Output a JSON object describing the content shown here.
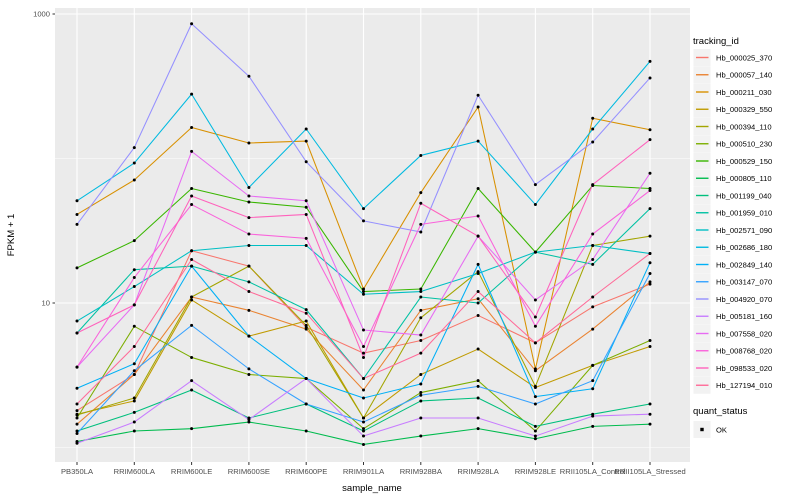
{
  "figure": {
    "kind": "ggplot-line-chart",
    "background": "#FFFFFF",
    "panel_bg": "#EBEBEB",
    "grid_color": "#FFFFFF",
    "tick_label_color": "#4D4D4D",
    "point_color": "#000000"
  },
  "legend": {
    "tracking_title": "tracking_id",
    "quant_title": "quant_status",
    "quant_items": [
      {
        "label": "OK",
        "marker": "black-point"
      }
    ],
    "key_bg": "#F2F2F2"
  },
  "chart_data": {
    "type": "line",
    "title": "",
    "xlabel": "sample_name",
    "ylabel": "FPKM + 1",
    "y_scale": "log10",
    "ylim": [
      0.8,
      1100
    ],
    "y_tick_values": [
      10,
      1000
    ],
    "y_tick_labels": [
      "10",
      "1000"
    ],
    "y_minor_gridlines": [
      1,
      100
    ],
    "grid": true,
    "legend_position": "right",
    "categories": [
      "PB350LA",
      "RRIM600LA",
      "RRIM600LE",
      "RRIM600SE",
      "RRIM600PE",
      "RRIM901LA",
      "RRIM928BA",
      "RRIM928LA",
      "RRIM928LE",
      "RRII105LA_Control",
      "RRII105LA_Stressed"
    ],
    "series": [
      {
        "name": "Hb_000025_370",
        "color": "#F8766D",
        "values": [
          1.8,
          3.2,
          23,
          18,
          6.8,
          4.5,
          5.5,
          8.2,
          5.3,
          9.4,
          13.5
        ]
      },
      {
        "name": "Hb_000057_140",
        "color": "#EA8331",
        "values": [
          1.45,
          3.2,
          11,
          8.9,
          6.6,
          2.5,
          8.9,
          10.7,
          3.4,
          6.6,
          14
        ]
      },
      {
        "name": "Hb_000211_030",
        "color": "#D89000",
        "values": [
          41,
          71,
          164,
          128,
          132,
          12.5,
          58,
          227,
          3.5,
          190,
          158
        ]
      },
      {
        "name": "Hb_000329_550",
        "color": "#C09B00",
        "values": [
          1.7,
          2.1,
          10.5,
          5.9,
          7.5,
          1.6,
          3.2,
          4.8,
          2.6,
          3.7,
          5.0
        ]
      },
      {
        "name": "Hb_000394_110",
        "color": "#A3A500",
        "values": [
          1.68,
          2.2,
          11,
          18,
          7.0,
          1.6,
          7.9,
          16.5,
          2.65,
          25,
          29
        ]
      },
      {
        "name": "Hb_000510_230",
        "color": "#7CAE00",
        "values": [
          1.6,
          6.9,
          4.2,
          3.2,
          3.0,
          1.35,
          2.4,
          2.9,
          1.3,
          3.7,
          5.5
        ]
      },
      {
        "name": "Hb_000529_150",
        "color": "#39B600",
        "values": [
          17.5,
          27,
          62,
          50,
          46,
          12,
          12.5,
          62,
          22.5,
          65,
          62
        ]
      },
      {
        "name": "Hb_000805_110",
        "color": "#00BB4E",
        "values": [
          1.1,
          1.3,
          1.35,
          1.5,
          1.3,
          1.05,
          1.2,
          1.35,
          1.15,
          1.4,
          1.45
        ]
      },
      {
        "name": "Hb_001199_040",
        "color": "#00BF7D",
        "values": [
          1.3,
          1.75,
          2.5,
          1.6,
          2.0,
          1.3,
          2.1,
          2.2,
          1.4,
          1.7,
          2.0
        ]
      },
      {
        "name": "Hb_001959_010",
        "color": "#00C1A3",
        "values": [
          6.2,
          17,
          18,
          14,
          9.0,
          3.0,
          11,
          10,
          22.5,
          18.5,
          45
        ]
      },
      {
        "name": "Hb_002571_090",
        "color": "#00BFC4",
        "values": [
          7.5,
          13,
          23,
          25,
          25,
          11.5,
          12,
          16,
          22.5,
          25,
          22
        ]
      },
      {
        "name": "Hb_002686_180",
        "color": "#00BAE0",
        "values": [
          51,
          93,
          279,
          63,
          160,
          45,
          105,
          132,
          48,
          160,
          470
        ]
      },
      {
        "name": "Hb_002849_140",
        "color": "#00B0F6",
        "values": [
          2.57,
          3.8,
          18,
          5.9,
          3.0,
          2.2,
          2.75,
          18.5,
          2.25,
          2.55,
          19
        ]
      },
      {
        "name": "Hb_003147_070",
        "color": "#35A2FF",
        "values": [
          1.25,
          3.4,
          7.0,
          3.5,
          2.0,
          1.5,
          2.3,
          2.65,
          2.0,
          2.9,
          16
        ]
      },
      {
        "name": "Hb_004920_070",
        "color": "#9590FF",
        "values": [
          35,
          119,
          856,
          371,
          95,
          37,
          31,
          274,
          66,
          130,
          361
        ]
      },
      {
        "name": "Hb_005181_160",
        "color": "#C77CFF",
        "values": [
          1.07,
          1.5,
          2.9,
          1.56,
          3.0,
          1.2,
          1.6,
          1.6,
          1.2,
          1.65,
          1.7
        ]
      },
      {
        "name": "Hb_007558_020",
        "color": "#E76BF3",
        "values": [
          3.6,
          9.7,
          112,
          55,
          51,
          6.5,
          6.0,
          29,
          10.5,
          20,
          79
        ]
      },
      {
        "name": "Hb_008768_020",
        "color": "#FA62DB",
        "values": [
          3.6,
          15,
          48,
          30,
          28,
          5.0,
          35,
          40,
          6.9,
          30,
          60
        ]
      },
      {
        "name": "Hb_098533_020",
        "color": "#FF62BC",
        "values": [
          6.2,
          9.7,
          55,
          39,
          41,
          4.2,
          49,
          29,
          8.0,
          66,
          135
        ]
      },
      {
        "name": "Hb_127194_010",
        "color": "#FF6A98",
        "values": [
          2.0,
          5.0,
          20,
          12,
          8.5,
          3.0,
          4.5,
          12,
          5.3,
          11,
          22
        ]
      }
    ]
  }
}
